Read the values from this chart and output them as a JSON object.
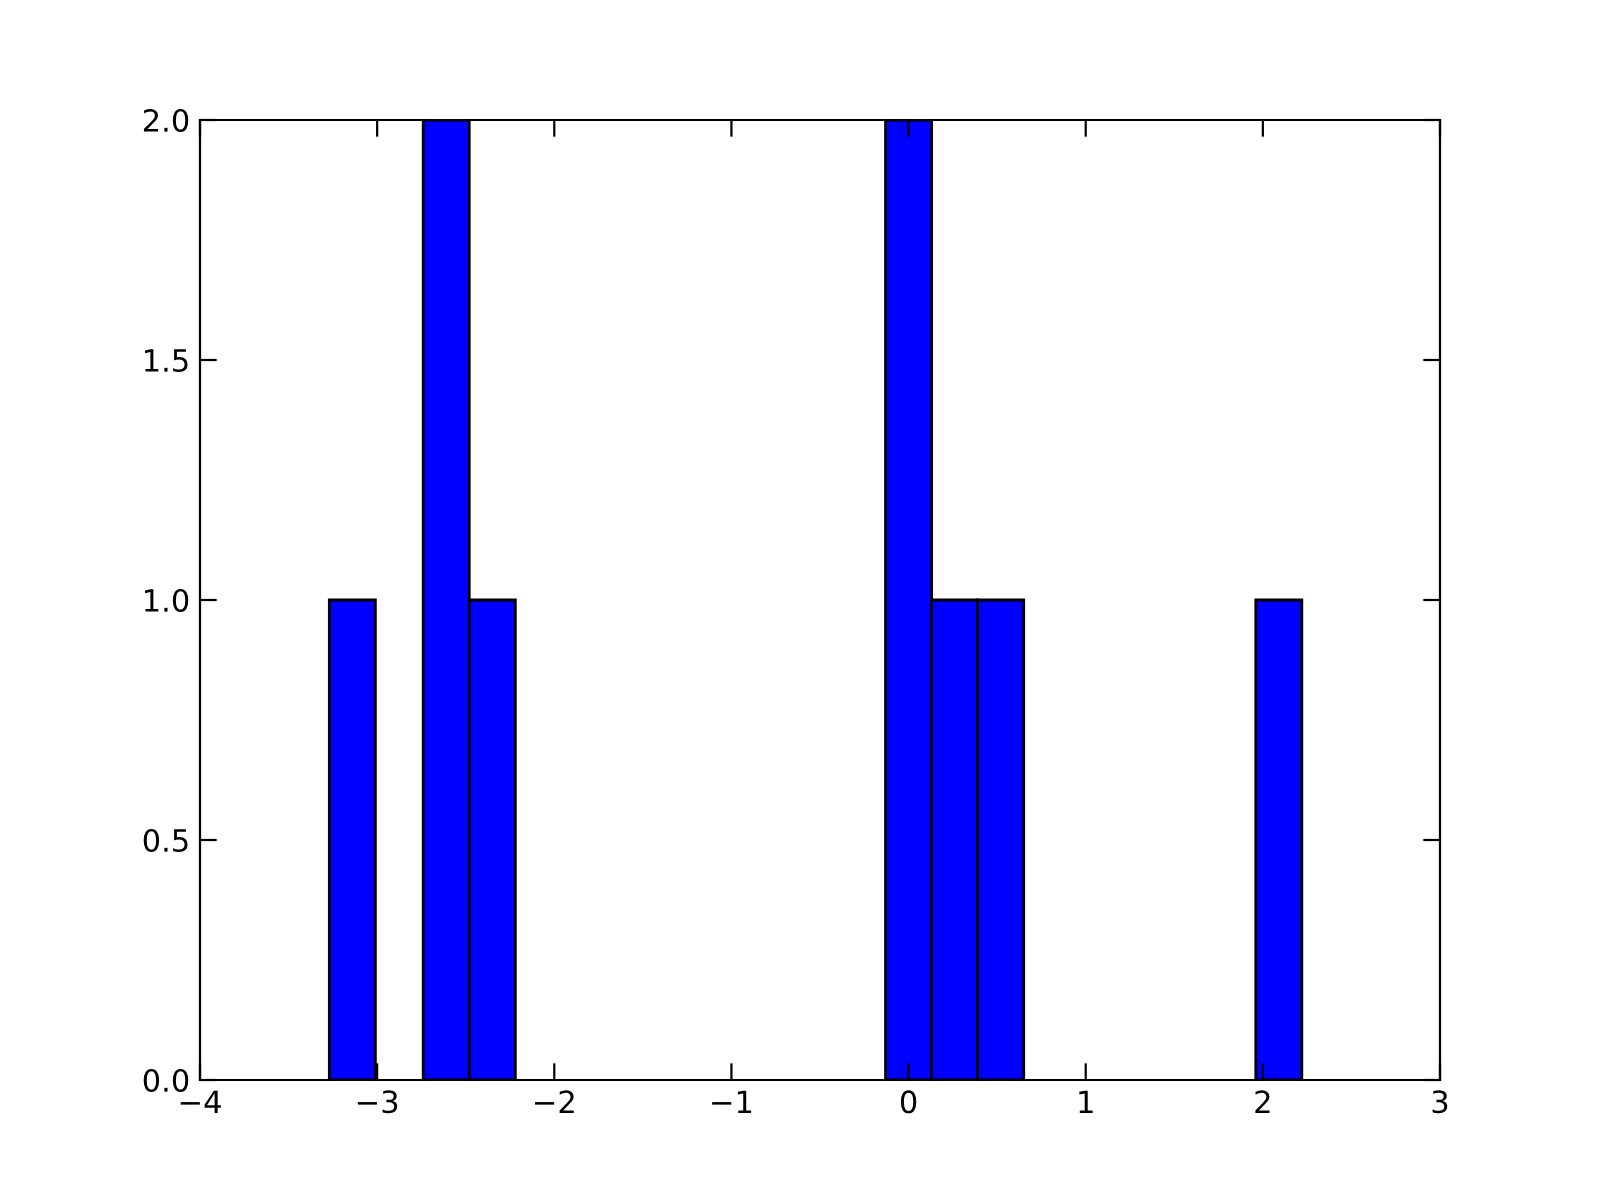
{
  "chart_data": {
    "type": "histogram",
    "bins": [
      -3.27,
      -3.01,
      -2.74,
      -2.48,
      -2.22,
      -0.13,
      0.13,
      0.39,
      0.65,
      1.96,
      2.22
    ],
    "values": [
      1,
      0,
      2,
      1,
      0,
      2,
      1,
      1,
      0,
      1
    ],
    "color": "#0000ff",
    "xlim": [
      -4,
      3
    ],
    "xticks": [
      {
        "value": -4,
        "label": "−4"
      },
      {
        "value": -3,
        "label": "−3"
      },
      {
        "value": -2,
        "label": "−2"
      },
      {
        "value": -1,
        "label": "−1"
      },
      0,
      1,
      2,
      3
    ],
    "ylim": [
      0,
      2
    ],
    "yticks": [
      {
        "value": 0,
        "label": "0.0"
      },
      0.5,
      {
        "value": 1,
        "label": "1.0"
      },
      1.5,
      {
        "value": 2,
        "label": "2.0"
      }
    ],
    "grid": false
  }
}
